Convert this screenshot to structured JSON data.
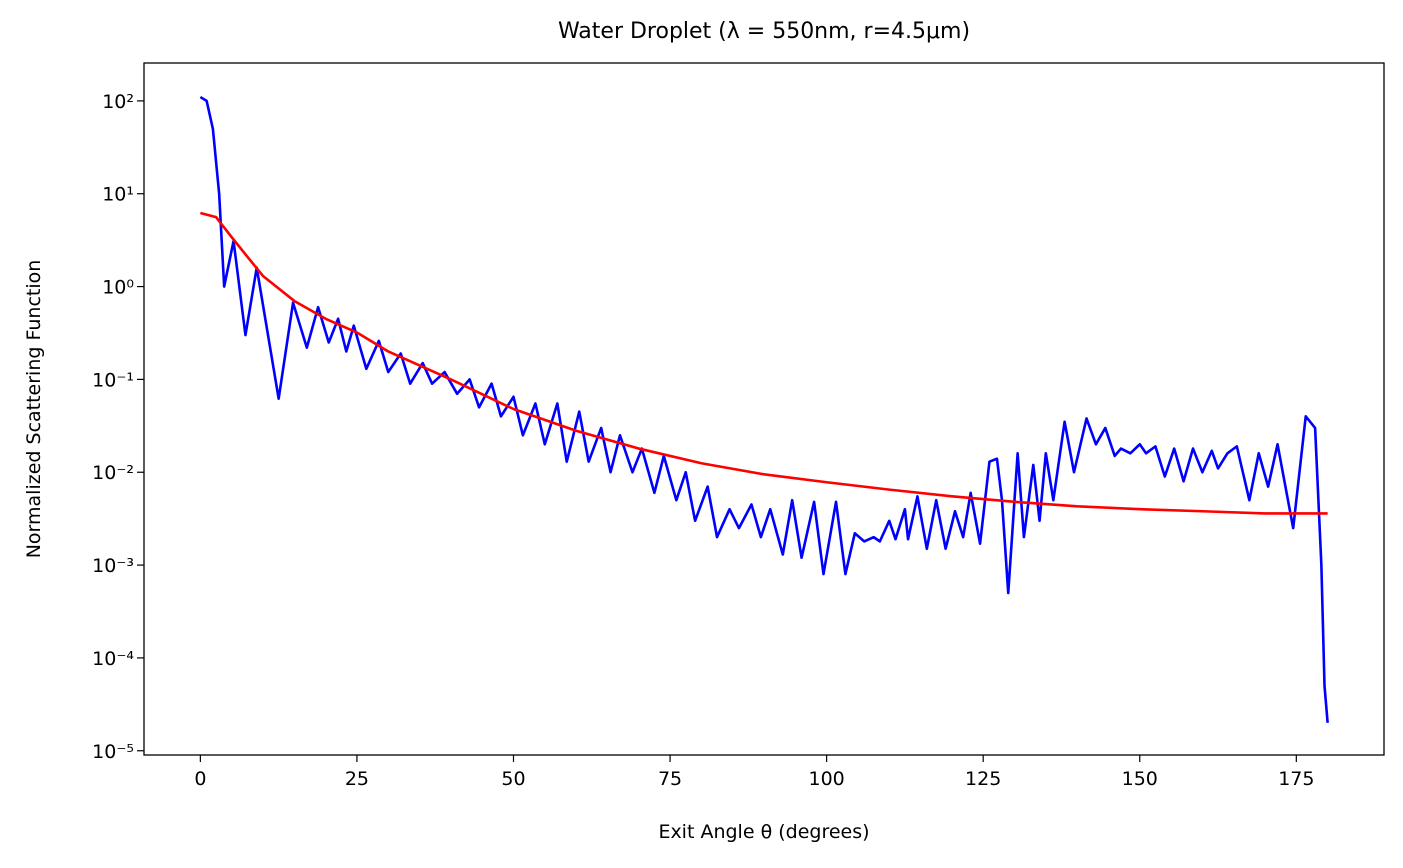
{
  "chart_data": {
    "type": "line",
    "title": "Water Droplet (λ = 550nm, r=4.5μm)",
    "x_label": "Exit Angle θ (degrees)",
    "y_label": "Normalized Scattering Function",
    "log_y": true,
    "xlim": [
      -9,
      189
    ],
    "ylim": [
      9e-06,
      256
    ],
    "xticks": [
      0,
      25,
      50,
      75,
      100,
      125,
      150,
      175
    ],
    "yticks": [
      {
        "value": 1e-05,
        "label": "10⁻⁵"
      },
      {
        "value": 0.0001,
        "label": "10⁻⁴"
      },
      {
        "value": 0.001,
        "label": "10⁻³"
      },
      {
        "value": 0.01,
        "label": "10⁻²"
      },
      {
        "value": 0.1,
        "label": "10⁻¹"
      },
      {
        "value": 1,
        "label": "10⁰"
      },
      {
        "value": 10,
        "label": "10¹"
      },
      {
        "value": 100,
        "label": "10²"
      }
    ],
    "series": [
      {
        "color": "#0000ff",
        "x": [
          0,
          1,
          2,
          3,
          3.8,
          5.3,
          7.2,
          9,
          12.5,
          14.8,
          17,
          18.8,
          20.5,
          22,
          23.3,
          24.5,
          26.5,
          28.5,
          30,
          32,
          33.5,
          35.5,
          37,
          39,
          41,
          43,
          44.5,
          46.5,
          48,
          50,
          51.5,
          53.5,
          55,
          57,
          58.5,
          60.5,
          62,
          64,
          65.5,
          67,
          69,
          70.5,
          72.5,
          74,
          76,
          77.5,
          79,
          81,
          82.5,
          84.5,
          86,
          88,
          89.5,
          91,
          93,
          94.5,
          96,
          98,
          99.5,
          101.5,
          103,
          104.5,
          106,
          107.5,
          108.5,
          110,
          111,
          112.5,
          113,
          114.5,
          116,
          117.5,
          119,
          120.5,
          121.8,
          123,
          124.5,
          126,
          127.2,
          128,
          129,
          130.5,
          131.5,
          133,
          134,
          135,
          136.2,
          138,
          139.5,
          141.5,
          143,
          144.5,
          146,
          147,
          148.5,
          150,
          151,
          152.5,
          154,
          155.5,
          157,
          158.5,
          160,
          161.5,
          162.5,
          164,
          165.5,
          167.5,
          169,
          170.5,
          172,
          174.5,
          176.5,
          178,
          179,
          179.5,
          180
        ],
        "values": [
          110,
          100,
          50,
          10,
          1.0,
          3.1,
          0.3,
          1.6,
          0.062,
          0.67,
          0.22,
          0.6,
          0.25,
          0.45,
          0.2,
          0.38,
          0.13,
          0.26,
          0.12,
          0.19,
          0.09,
          0.15,
          0.09,
          0.12,
          0.07,
          0.1,
          0.05,
          0.09,
          0.04,
          0.065,
          0.025,
          0.055,
          0.02,
          0.055,
          0.013,
          0.045,
          0.013,
          0.03,
          0.01,
          0.025,
          0.01,
          0.018,
          0.006,
          0.015,
          0.005,
          0.01,
          0.003,
          0.007,
          0.002,
          0.004,
          0.0025,
          0.0045,
          0.002,
          0.004,
          0.0013,
          0.005,
          0.0012,
          0.0048,
          0.0008,
          0.0048,
          0.0008,
          0.0022,
          0.0018,
          0.002,
          0.0018,
          0.003,
          0.0019,
          0.004,
          0.0019,
          0.0055,
          0.0015,
          0.005,
          0.0015,
          0.0038,
          0.002,
          0.006,
          0.0017,
          0.013,
          0.014,
          0.005,
          0.0005,
          0.016,
          0.002,
          0.012,
          0.003,
          0.016,
          0.005,
          0.035,
          0.01,
          0.038,
          0.02,
          0.03,
          0.015,
          0.018,
          0.016,
          0.02,
          0.016,
          0.019,
          0.009,
          0.018,
          0.008,
          0.018,
          0.01,
          0.017,
          0.011,
          0.016,
          0.019,
          0.005,
          0.016,
          0.007,
          0.02,
          0.0025,
          0.04,
          0.03,
          0.001,
          5e-05,
          2e-05
        ]
      },
      {
        "color": "#ff0000",
        "x": [
          0,
          2.5,
          5,
          7.5,
          10,
          15,
          20,
          25,
          30,
          40,
          50,
          60,
          70,
          80,
          90,
          100,
          110,
          120,
          130,
          140,
          150,
          160,
          170,
          180
        ],
        "values": [
          6.2,
          5.6,
          3.4,
          2.1,
          1.3,
          0.7,
          0.45,
          0.32,
          0.2,
          0.1,
          0.048,
          0.028,
          0.018,
          0.0125,
          0.0095,
          0.0078,
          0.0065,
          0.0055,
          0.0048,
          0.0043,
          0.004,
          0.0038,
          0.0036,
          0.0036
        ]
      }
    ]
  }
}
